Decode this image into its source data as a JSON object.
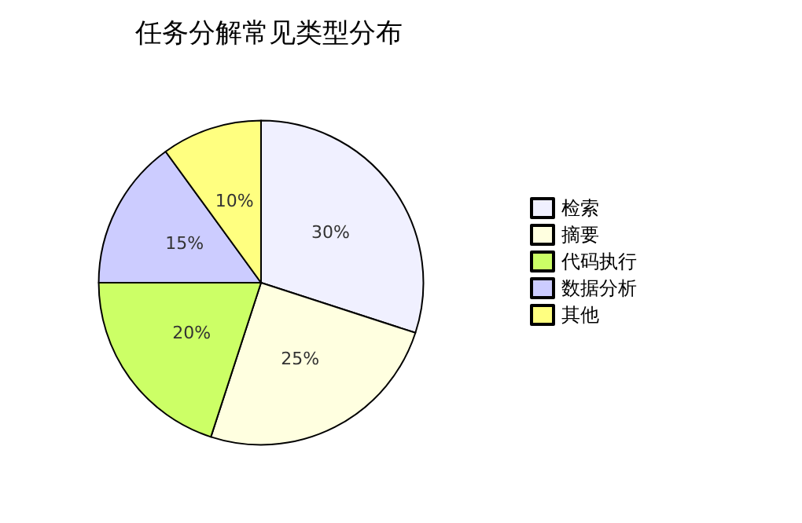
{
  "chart_data": {
    "type": "pie",
    "title": "任务分解常见类型分布",
    "categories": [
      "检索",
      "摘要",
      "代码执行",
      "数据分析",
      "其他"
    ],
    "values": [
      30,
      25,
      20,
      15,
      10
    ],
    "value_labels": [
      "30%",
      "25%",
      "20%",
      "15%",
      "10%"
    ],
    "colors": [
      "#f0f0ff",
      "#ffffe0",
      "#ccff66",
      "#ccccff",
      "#ffff80"
    ],
    "legend": "right"
  }
}
